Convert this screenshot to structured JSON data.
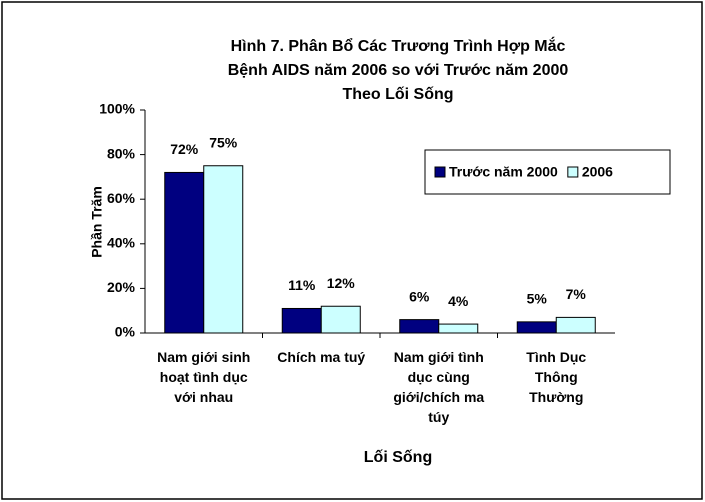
{
  "chart_data": {
    "type": "bar",
    "title": [
      "Hình 7. Phân Bổ Các Trương Trình Hợp Mắc",
      "Bệnh AIDS năm 2006 so với Trước năm 2000",
      "Theo Lối Sống"
    ],
    "xlabel": "Lối Sống",
    "ylabel": "Phần Trăm",
    "categories": [
      [
        "Nam giới sinh",
        "hoạt tình dục",
        "với nhau"
      ],
      [
        "Chích ma tuý"
      ],
      [
        "Nam giới tình",
        "dục cùng",
        "giới/chích ma",
        "túy"
      ],
      [
        "Tình Dục",
        "Thông",
        "Thường"
      ]
    ],
    "series": [
      {
        "name": "Trước năm 2000",
        "color": "#000080",
        "values": [
          72,
          11,
          6,
          5
        ],
        "value_labels": [
          "72%",
          "11%",
          "6%",
          "5%"
        ]
      },
      {
        "name": "2006",
        "color": "#ccffff",
        "values": [
          75,
          12,
          4,
          7
        ],
        "value_labels": [
          "75%",
          "12%",
          "4%",
          "7%"
        ]
      }
    ],
    "ylim": [
      0,
      100
    ],
    "yticks": [
      {
        "value": 0,
        "label": "0%"
      },
      {
        "value": 20,
        "label": "20%"
      },
      {
        "value": 40,
        "label": "40%"
      },
      {
        "value": 60,
        "label": "60%"
      },
      {
        "value": 80,
        "label": "80%"
      },
      {
        "value": 100,
        "label": "100%"
      }
    ],
    "legend": "right"
  }
}
